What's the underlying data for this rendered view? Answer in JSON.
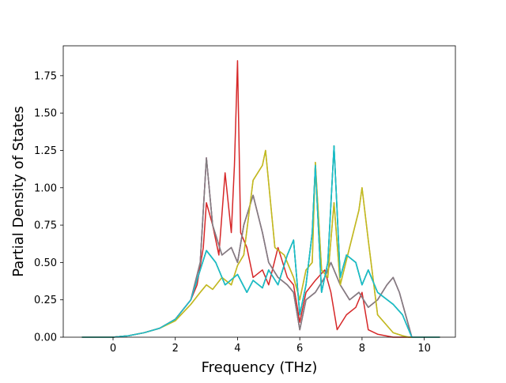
{
  "chart_data": {
    "type": "line",
    "xlabel": "Frequency (THz)",
    "ylabel": "Partial Density of States",
    "xlim": [
      -1.6,
      11.0
    ],
    "ylim": [
      0.0,
      1.95
    ],
    "xticks": [
      0,
      2,
      4,
      6,
      8,
      10
    ],
    "xtick_labels": [
      "0",
      "2",
      "4",
      "6",
      "8",
      "10"
    ],
    "yticks": [
      0.0,
      0.25,
      0.5,
      0.75,
      1.0,
      1.25,
      1.5,
      1.75
    ],
    "ytick_labels": [
      "0.00",
      "0.25",
      "0.50",
      "0.75",
      "1.00",
      "1.25",
      "1.50",
      "1.75"
    ],
    "grid": false,
    "legend": "none",
    "series": [
      {
        "color": "#1f77b4",
        "x": [
          -1.0,
          0.0,
          0.5,
          1.0,
          1.5,
          2.0,
          2.5,
          2.8,
          3.0,
          3.3,
          3.6,
          4.0,
          4.3,
          4.5,
          4.8,
          5.0,
          5.3,
          5.6,
          5.8,
          6.0,
          6.2,
          6.4,
          6.5,
          6.7,
          6.9,
          7.1,
          7.3,
          7.5,
          7.8,
          8.0,
          8.2,
          8.5,
          9.0,
          9.3,
          9.5,
          9.6,
          10.5
        ],
        "y": [
          0.0,
          0.0,
          0.01,
          0.03,
          0.06,
          0.12,
          0.25,
          0.45,
          0.58,
          0.5,
          0.35,
          0.42,
          0.3,
          0.38,
          0.33,
          0.45,
          0.35,
          0.55,
          0.65,
          0.15,
          0.35,
          0.7,
          1.15,
          0.3,
          0.5,
          1.28,
          0.4,
          0.55,
          0.5,
          0.35,
          0.45,
          0.3,
          0.22,
          0.15,
          0.05,
          0.0,
          0.0
        ]
      },
      {
        "color": "#ff7f0e",
        "x": [
          -1.0,
          0.0,
          0.5,
          1.0,
          1.5,
          2.0,
          2.5,
          2.8,
          3.0,
          3.2,
          3.5,
          3.8,
          4.0,
          4.2,
          4.5,
          4.8,
          4.9,
          5.2,
          5.5,
          5.8,
          6.0,
          6.2,
          6.4,
          6.5,
          6.7,
          6.9,
          7.1,
          7.3,
          7.6,
          7.9,
          8.0,
          8.2,
          8.5,
          9.0,
          9.3,
          9.5,
          10.5
        ],
        "y": [
          0.0,
          0.0,
          0.01,
          0.03,
          0.06,
          0.11,
          0.22,
          0.3,
          0.35,
          0.32,
          0.4,
          0.35,
          0.48,
          0.55,
          1.05,
          1.15,
          1.25,
          0.6,
          0.55,
          0.4,
          0.25,
          0.45,
          0.5,
          1.17,
          0.45,
          0.4,
          0.9,
          0.35,
          0.6,
          0.85,
          1.0,
          0.65,
          0.15,
          0.03,
          0.01,
          0.0,
          0.0
        ]
      },
      {
        "color": "#2ca02c",
        "x": [
          -1.0,
          0.0,
          0.5,
          1.0,
          1.5,
          2.0,
          2.5,
          2.8,
          3.0,
          3.3,
          3.6,
          4.0,
          4.3,
          4.5,
          4.8,
          5.0,
          5.3,
          5.6,
          5.8,
          6.0,
          6.2,
          6.4,
          6.5,
          6.7,
          6.9,
          7.1,
          7.3,
          7.5,
          7.8,
          8.0,
          8.2,
          8.5,
          9.0,
          9.3,
          9.5,
          9.6,
          10.5
        ],
        "y": [
          0.0,
          0.0,
          0.01,
          0.03,
          0.06,
          0.12,
          0.25,
          0.45,
          0.58,
          0.5,
          0.35,
          0.42,
          0.3,
          0.38,
          0.33,
          0.45,
          0.35,
          0.55,
          0.65,
          0.15,
          0.35,
          0.7,
          1.15,
          0.3,
          0.5,
          1.28,
          0.4,
          0.55,
          0.5,
          0.35,
          0.45,
          0.3,
          0.22,
          0.15,
          0.05,
          0.0,
          0.0
        ]
      },
      {
        "color": "#d62728",
        "x": [
          -1.0,
          0.0,
          0.5,
          1.0,
          1.5,
          2.0,
          2.5,
          2.7,
          2.9,
          3.0,
          3.2,
          3.4,
          3.6,
          3.8,
          3.9,
          4.0,
          4.1,
          4.3,
          4.5,
          4.8,
          5.0,
          5.3,
          5.6,
          5.8,
          6.0,
          6.2,
          6.5,
          6.8,
          7.0,
          7.2,
          7.5,
          7.8,
          8.0,
          8.2,
          8.5,
          9.0,
          9.5,
          10.5
        ],
        "y": [
          0.0,
          0.0,
          0.01,
          0.03,
          0.06,
          0.12,
          0.25,
          0.35,
          0.6,
          0.9,
          0.75,
          0.55,
          1.1,
          0.7,
          1.15,
          1.85,
          0.7,
          0.6,
          0.4,
          0.45,
          0.35,
          0.6,
          0.4,
          0.35,
          0.1,
          0.3,
          0.38,
          0.45,
          0.3,
          0.05,
          0.15,
          0.2,
          0.3,
          0.05,
          0.02,
          0.0,
          0.0,
          0.0
        ]
      },
      {
        "color": "#9467bd",
        "x": [
          -1.0,
          0.0,
          0.5,
          1.0,
          1.5,
          2.0,
          2.5,
          2.8,
          3.0,
          3.2,
          3.5,
          3.8,
          4.0,
          4.2,
          4.5,
          4.8,
          5.0,
          5.3,
          5.6,
          5.8,
          6.0,
          6.2,
          6.5,
          6.8,
          7.0,
          7.3,
          7.6,
          7.9,
          8.2,
          8.5,
          8.8,
          9.0,
          9.2,
          9.4,
          9.6,
          10.5
        ],
        "y": [
          0.0,
          0.0,
          0.01,
          0.03,
          0.06,
          0.12,
          0.25,
          0.5,
          1.2,
          0.75,
          0.55,
          0.6,
          0.5,
          0.75,
          0.95,
          0.7,
          0.5,
          0.4,
          0.35,
          0.3,
          0.05,
          0.25,
          0.3,
          0.4,
          0.5,
          0.35,
          0.25,
          0.3,
          0.2,
          0.25,
          0.35,
          0.4,
          0.3,
          0.15,
          0.0,
          0.0
        ]
      },
      {
        "color": "#8c564b",
        "x": [
          -1.0,
          0.0,
          0.5,
          1.0,
          1.5,
          2.0,
          2.5,
          2.8,
          3.0,
          3.2,
          3.5,
          3.8,
          4.0,
          4.2,
          4.5,
          4.8,
          5.0,
          5.3,
          5.6,
          5.8,
          6.0,
          6.2,
          6.5,
          6.8,
          7.0,
          7.3,
          7.6,
          7.9,
          8.2,
          8.5,
          8.8,
          9.0,
          9.2,
          9.4,
          9.6,
          10.5
        ],
        "y": [
          0.0,
          0.0,
          0.01,
          0.03,
          0.06,
          0.12,
          0.25,
          0.5,
          1.2,
          0.75,
          0.55,
          0.6,
          0.5,
          0.75,
          0.95,
          0.7,
          0.5,
          0.4,
          0.35,
          0.3,
          0.05,
          0.25,
          0.3,
          0.4,
          0.5,
          0.35,
          0.25,
          0.3,
          0.2,
          0.25,
          0.35,
          0.4,
          0.3,
          0.15,
          0.0,
          0.0
        ]
      },
      {
        "color": "#e377c2",
        "x": [
          -1.0,
          0.0,
          0.5,
          1.0,
          1.5,
          2.0,
          2.5,
          2.8,
          3.0,
          3.2,
          3.5,
          3.8,
          4.0,
          4.2,
          4.5,
          4.8,
          5.0,
          5.3,
          5.6,
          5.8,
          6.0,
          6.2,
          6.5,
          6.8,
          7.0,
          7.3,
          7.6,
          7.9,
          8.2,
          8.5,
          8.8,
          9.0,
          9.2,
          9.4,
          9.6,
          10.5
        ],
        "y": [
          0.0,
          0.0,
          0.01,
          0.03,
          0.06,
          0.12,
          0.25,
          0.5,
          1.2,
          0.75,
          0.55,
          0.6,
          0.5,
          0.75,
          0.95,
          0.7,
          0.5,
          0.4,
          0.35,
          0.3,
          0.05,
          0.25,
          0.3,
          0.4,
          0.5,
          0.35,
          0.25,
          0.3,
          0.2,
          0.25,
          0.35,
          0.4,
          0.3,
          0.15,
          0.0,
          0.0
        ]
      },
      {
        "color": "#7f7f7f",
        "x": [
          -1.0,
          0.0,
          0.5,
          1.0,
          1.5,
          2.0,
          2.5,
          2.8,
          3.0,
          3.2,
          3.5,
          3.8,
          4.0,
          4.2,
          4.5,
          4.8,
          5.0,
          5.3,
          5.6,
          5.8,
          6.0,
          6.2,
          6.5,
          6.8,
          7.0,
          7.3,
          7.6,
          7.9,
          8.2,
          8.5,
          8.8,
          9.0,
          9.2,
          9.4,
          9.6,
          10.5
        ],
        "y": [
          0.0,
          0.0,
          0.01,
          0.03,
          0.06,
          0.12,
          0.25,
          0.5,
          1.2,
          0.75,
          0.55,
          0.6,
          0.5,
          0.75,
          0.95,
          0.7,
          0.5,
          0.4,
          0.35,
          0.3,
          0.05,
          0.25,
          0.3,
          0.4,
          0.5,
          0.35,
          0.25,
          0.3,
          0.2,
          0.25,
          0.35,
          0.4,
          0.3,
          0.15,
          0.0,
          0.0
        ]
      },
      {
        "color": "#bcbd22",
        "x": [
          -1.0,
          0.0,
          0.5,
          1.0,
          1.5,
          2.0,
          2.5,
          2.8,
          3.0,
          3.2,
          3.5,
          3.8,
          4.0,
          4.2,
          4.5,
          4.8,
          4.9,
          5.2,
          5.5,
          5.8,
          6.0,
          6.2,
          6.4,
          6.5,
          6.7,
          6.9,
          7.1,
          7.3,
          7.6,
          7.9,
          8.0,
          8.2,
          8.5,
          9.0,
          9.3,
          9.5,
          10.5
        ],
        "y": [
          0.0,
          0.0,
          0.01,
          0.03,
          0.06,
          0.11,
          0.22,
          0.3,
          0.35,
          0.32,
          0.4,
          0.35,
          0.48,
          0.55,
          1.05,
          1.15,
          1.25,
          0.6,
          0.55,
          0.4,
          0.25,
          0.45,
          0.5,
          1.17,
          0.45,
          0.4,
          0.9,
          0.35,
          0.6,
          0.85,
          1.0,
          0.65,
          0.15,
          0.03,
          0.01,
          0.0,
          0.0
        ]
      },
      {
        "color": "#17becf",
        "x": [
          -1.0,
          0.0,
          0.5,
          1.0,
          1.5,
          2.0,
          2.5,
          2.8,
          3.0,
          3.3,
          3.6,
          4.0,
          4.3,
          4.5,
          4.8,
          5.0,
          5.3,
          5.6,
          5.8,
          6.0,
          6.2,
          6.4,
          6.5,
          6.7,
          6.9,
          7.1,
          7.3,
          7.5,
          7.8,
          8.0,
          8.2,
          8.5,
          9.0,
          9.3,
          9.5,
          9.6,
          10.5
        ],
        "y": [
          0.0,
          0.0,
          0.01,
          0.03,
          0.06,
          0.12,
          0.25,
          0.45,
          0.58,
          0.5,
          0.35,
          0.42,
          0.3,
          0.38,
          0.33,
          0.45,
          0.35,
          0.55,
          0.65,
          0.15,
          0.35,
          0.7,
          1.15,
          0.3,
          0.5,
          1.28,
          0.4,
          0.55,
          0.5,
          0.35,
          0.45,
          0.3,
          0.22,
          0.15,
          0.05,
          0.0,
          0.0
        ]
      }
    ]
  }
}
